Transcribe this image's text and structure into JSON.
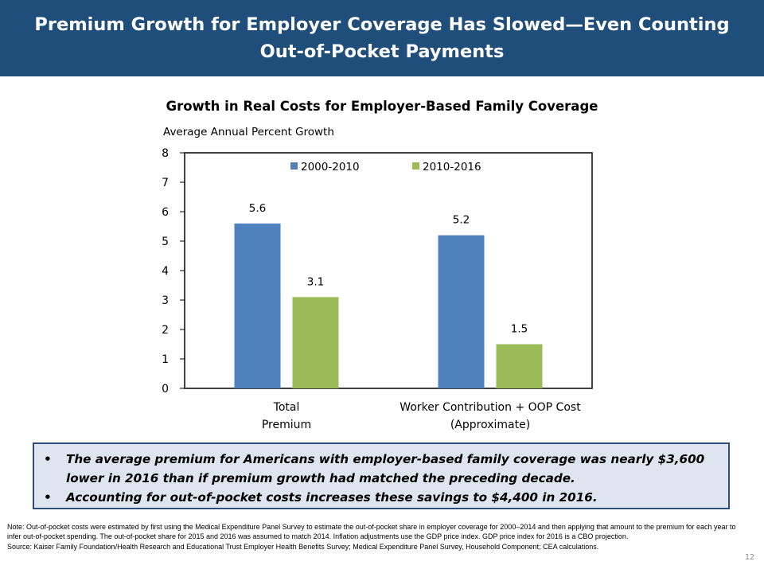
{
  "slide_title": "Premium Growth for Employer Coverage Has Slowed—Even Counting Out-of-Pocket Payments",
  "chart_data": {
    "type": "bar",
    "title": "Growth in Real Costs for Employer-Based Family Coverage",
    "ylabel": "Average Annual Percent Growth",
    "categories": [
      [
        "Total",
        "Premium"
      ],
      [
        "Worker Contribution + OOP Cost",
        "(Approximate)"
      ]
    ],
    "series": [
      {
        "name": "2000-2010",
        "color": "#4f81bd",
        "values": [
          5.6,
          5.2
        ]
      },
      {
        "name": "2010-2016",
        "color": "#9bbb59",
        "values": [
          3.1,
          1.5
        ]
      }
    ],
    "data_labels": [
      [
        "5.6",
        "3.1"
      ],
      [
        "5.2",
        "1.5"
      ]
    ],
    "ylim": [
      0,
      8
    ],
    "yticks": [
      0,
      1,
      2,
      3,
      4,
      5,
      6,
      7,
      8
    ],
    "grid": false,
    "legend_position": "top-center"
  },
  "callout": {
    "bullets": [
      "The average premium for Americans with employer-based  family coverage was nearly $3,600 lower in 2016 than if premium growth had matched the preceding decade.",
      "Accounting for out-of-pocket  costs increases these savings to $4,400 in 2016."
    ]
  },
  "note": "Note: Out-of-pocket costs were estimated by first using the Medical Expenditure Panel Survey to estimate the out-of-pocket share in employer coverage for 2000–2014 and then applying that amount to the premium for each year to infer out-of-pocket spending. The out-of-pocket share for 2015 and 2016 was assumed to match 2014. Inflation adjustments use the GDP price index. GDP price index for 2016 is a CBO projection.",
  "source": "Source: Kaiser Family Foundation/Health Research and Educational Trust Employer Health Benefits Survey; Medical Expenditure Panel Survey, Household Component; CEA calculations.",
  "page_number": "12"
}
